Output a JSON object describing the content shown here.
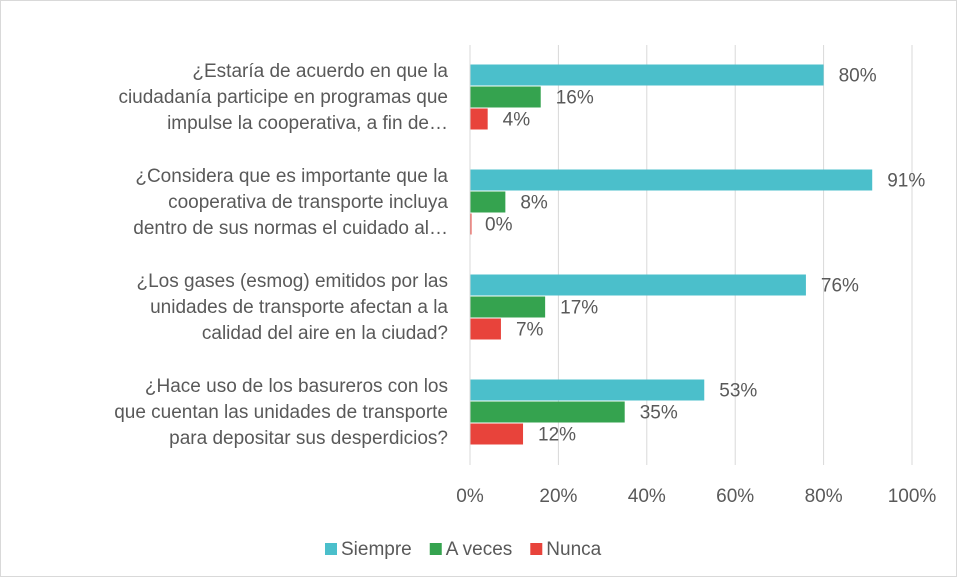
{
  "chart_data": {
    "type": "bar",
    "orientation": "horizontal",
    "categories": [
      "¿Estaría de acuerdo en que la\nciudadanía participe en programas que\nimpulse la cooperativa, a fin de…",
      "¿Considera que es importante que la\ncooperativa de transporte incluya\ndentro de sus normas el cuidado al…",
      "¿Los gases (esmog) emitidos por las\nunidades de transporte afectan a la\ncalidad del aire en la ciudad?",
      "¿Hace uso de los basureros con los\nque cuentan las unidades de transporte\npara depositar sus desperdicios?"
    ],
    "series": [
      {
        "name": "Siempre",
        "color": "#4bbfcb",
        "values": [
          80,
          91,
          76,
          53
        ],
        "value_labels": [
          "80%",
          "91%",
          "76%",
          "53%"
        ]
      },
      {
        "name": "A veces",
        "color": "#35a34f",
        "values": [
          16,
          8,
          17,
          35
        ],
        "value_labels": [
          "16%",
          "8%",
          "17%",
          "35%"
        ]
      },
      {
        "name": "Nunca",
        "color": "#e8433b",
        "values": [
          4,
          0,
          7,
          12
        ],
        "value_labels": [
          "4%",
          "0%",
          "7%",
          "12%"
        ]
      }
    ],
    "xlim": [
      0,
      100
    ],
    "xticks": [
      {
        "value": 0,
        "label": "0%"
      },
      {
        "value": 20,
        "label": "20%"
      },
      {
        "value": 40,
        "label": "40%"
      },
      {
        "value": 60,
        "label": "60%"
      },
      {
        "value": 80,
        "label": "80%"
      },
      {
        "value": 100,
        "label": "100%"
      }
    ],
    "grid": true,
    "legend": "bottom"
  }
}
